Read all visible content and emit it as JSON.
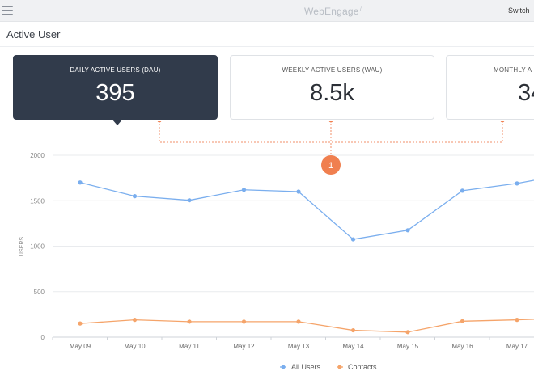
{
  "header": {
    "app_logo": "WebEngage",
    "logo_mark": "7",
    "switch_label": "Switch"
  },
  "page": {
    "title": "Active User"
  },
  "cards": [
    {
      "label": "DAILY ACTIVE USERS (DAU)",
      "value": "395",
      "active": true
    },
    {
      "label": "WEEKLY ACTIVE USERS (WAU)",
      "value": "8.5k",
      "active": false
    },
    {
      "label": "MONTHLY A",
      "value": "34",
      "active": false
    }
  ],
  "callout": {
    "number": "1",
    "color": "#f07f4f"
  },
  "colors": {
    "all_users": "#7aaeee",
    "contacts": "#f5a46a",
    "card_active_bg": "#313b4b"
  },
  "chart_data": {
    "type": "line",
    "categories": [
      "May 09",
      "May 10",
      "May 11",
      "May 12",
      "May 13",
      "May 14",
      "May 15",
      "May 16",
      "May 17"
    ],
    "series": [
      {
        "name": "All Users",
        "values": [
          1700,
          1550,
          1505,
          1620,
          1600,
          1075,
          1175,
          1610,
          1690
        ],
        "color": "#7aaeee"
      },
      {
        "name": "Contacts",
        "values": [
          150,
          190,
          170,
          170,
          170,
          75,
          55,
          175,
          190
        ],
        "color": "#f5a46a"
      }
    ],
    "yticks": [
      "0",
      "500",
      "1000",
      "1500",
      "2000"
    ],
    "ylim": [
      0,
      2000
    ],
    "ylabel": "USERS",
    "grid": true,
    "legend_position": "bottom"
  }
}
